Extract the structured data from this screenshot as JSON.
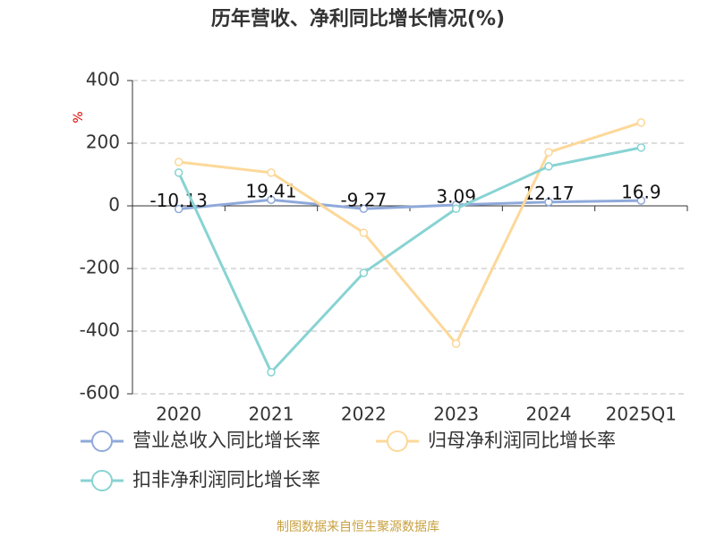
{
  "chart_data": {
    "type": "line",
    "title": "历年营收、净利同比增长情况(%)",
    "y_label": "%",
    "source": "制图数据来自恒生聚源数据库",
    "categories": [
      "2020",
      "2021",
      "2022",
      "2023",
      "2024",
      "2025Q1"
    ],
    "series": [
      {
        "name": "营业总收入同比增长率",
        "color": "#8fa9da",
        "values": [
          -10.13,
          19.41,
          -9.27,
          3.09,
          12.17,
          16.9
        ],
        "labels": true
      },
      {
        "name": "归母净利润同比增长率",
        "color": "#fcd899",
        "values": [
          140,
          106,
          -86,
          -440,
          171,
          266
        ]
      },
      {
        "name": "扣非净利润同比增长率",
        "color": "#88d3d3",
        "values": [
          106,
          -531,
          -214,
          -9,
          126,
          186
        ]
      }
    ],
    "ylim": [
      -600,
      400
    ],
    "yticks": [
      400,
      200,
      0,
      -200,
      -400,
      -600
    ],
    "grid": true
  }
}
